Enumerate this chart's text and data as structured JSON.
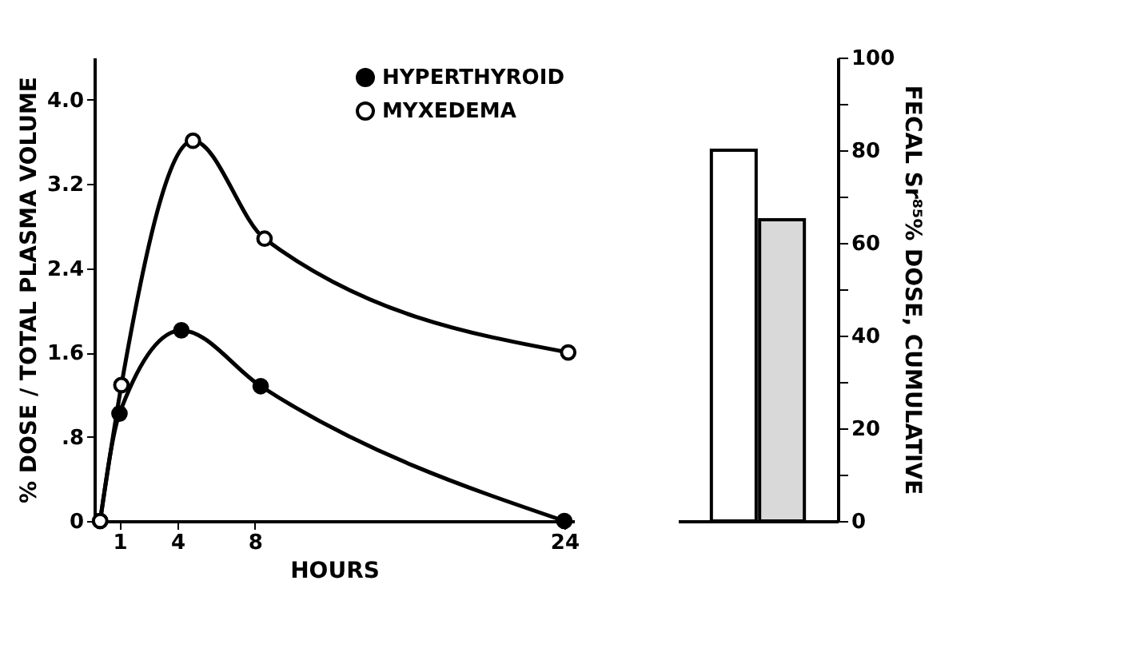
{
  "chart_data": [
    {
      "type": "line",
      "xlabel": "HOURS",
      "ylabel": "% DOSE / TOTAL PLASMA VOLUME",
      "series": [
        {
          "name": "HYPERTHYROID",
          "color": "#000000",
          "x": [
            0,
            1,
            4.2,
            8.3,
            24
          ],
          "values": [
            0,
            1.02,
            1.81,
            1.28,
            0
          ]
        },
        {
          "name": "MYXEDEMA",
          "color": "#000000",
          "x": [
            0,
            1.1,
            4.8,
            8.5,
            24.2
          ],
          "values": [
            0,
            1.29,
            3.61,
            2.68,
            1.6
          ]
        }
      ],
      "xlim": [
        -0.3,
        24.5
      ],
      "xticks": [
        1,
        4,
        8,
        24
      ],
      "ylim": [
        0,
        4.4
      ],
      "yticks": [
        0,
        {
          "value": 0.8,
          "label": ".8"
        },
        1.6,
        2.4,
        3.2,
        {
          "value": 4,
          "label": "4.0"
        }
      ],
      "marker": "circle",
      "line_style": "solid",
      "grid": false,
      "legend": "top right"
    },
    {
      "type": "bar",
      "ylabel": "FECAL Sr⁸⁵% DOSE, CUMULATIVE",
      "categories": [
        null
      ],
      "series": [
        {
          "color": "#ffffff",
          "values": [
            80
          ]
        },
        {
          "color": "#d9d9d9",
          "values": [
            65
          ]
        }
      ],
      "ylim": [
        0,
        100
      ],
      "yticks": [
        0,
        {
          "value": 10,
          "label": null
        },
        20,
        {
          "value": 30,
          "label": null
        },
        40,
        {
          "value": 50,
          "label": null
        },
        60,
        {
          "value": 70,
          "label": null
        },
        80,
        {
          "value": 90,
          "label": null
        },
        100
      ],
      "grid": false
    }
  ]
}
